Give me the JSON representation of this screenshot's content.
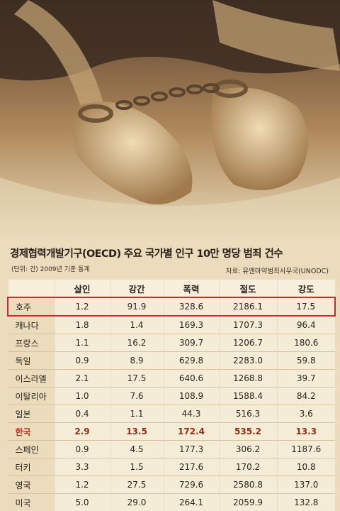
{
  "header": {
    "title": "경제협력개발기구(OECD) 주요 국가별 인구 10만 명당 범죄 건수",
    "unit": "(단위: 건) 2009년 기준 통계",
    "source": "자료: 유엔마약범죄사무국(UNODC)"
  },
  "table": {
    "columns": [
      "살인",
      "강간",
      "폭력",
      "절도",
      "강도"
    ],
    "rows": [
      [
        "호주",
        "1.2",
        "91.9",
        "328.6",
        "2186.1",
        "17.5"
      ],
      [
        "캐나다",
        "1.8",
        "1.4",
        "169.3",
        "1707.3",
        "96.4"
      ],
      [
        "프랑스",
        "1.1",
        "16.2",
        "309.7",
        "1206.7",
        "180.6"
      ],
      [
        "독일",
        "0.9",
        "8.9",
        "629.8",
        "2283.0",
        "59.8"
      ],
      [
        "이스라엘",
        "2.1",
        "17.5",
        "640.6",
        "1268.8",
        "39.7"
      ],
      [
        "이탈리아",
        "1.0",
        "7.6",
        "108.9",
        "1588.4",
        "84.2"
      ],
      [
        "일본",
        "0.4",
        "1.1",
        "44.3",
        "516.3",
        "3.6"
      ],
      [
        "한국",
        "2.9",
        "13.5",
        "172.4",
        "535.2",
        "13.3"
      ],
      [
        "스페인",
        "0.9",
        "4.5",
        "177.3",
        "306.2",
        "1187.6"
      ],
      [
        "터키",
        "3.3",
        "1.5",
        "217.6",
        "170.2",
        "10.8"
      ],
      [
        "영국",
        "1.2",
        "27.5",
        "729.6",
        "2580.8",
        "137.0"
      ],
      [
        "미국",
        "5.0",
        "29.0",
        "264.1",
        "2059.9",
        "132.8"
      ]
    ]
  }
}
